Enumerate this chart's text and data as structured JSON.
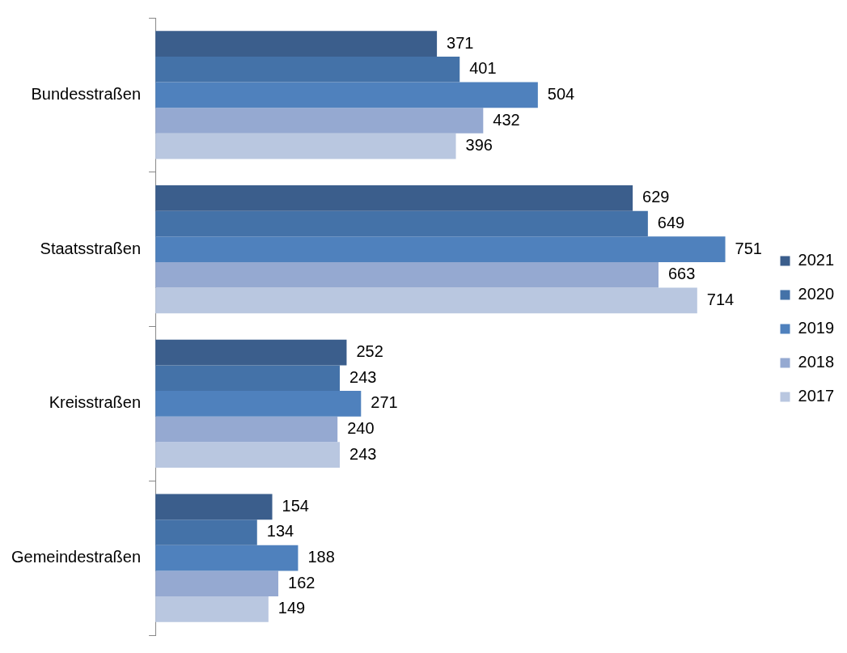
{
  "chart_data": {
    "type": "bar",
    "orientation": "horizontal",
    "categories": [
      "Bundesstraßen",
      "Staatsstraßen",
      "Kreisstraßen",
      "Gemeindestraßen"
    ],
    "series": [
      {
        "name": "2021",
        "color": "#3b5e8c",
        "values": [
          371,
          629,
          252,
          154
        ]
      },
      {
        "name": "2020",
        "color": "#4472a8",
        "values": [
          401,
          649,
          243,
          134
        ]
      },
      {
        "name": "2019",
        "color": "#4f81bd",
        "values": [
          504,
          751,
          271,
          188
        ]
      },
      {
        "name": "2018",
        "color": "#95a9d1",
        "values": [
          432,
          663,
          240,
          162
        ]
      },
      {
        "name": "2017",
        "color": "#b9c7e0",
        "values": [
          396,
          714,
          243,
          149
        ]
      }
    ],
    "data_labels": true,
    "legend": "right",
    "tick_labels": "y"
  }
}
